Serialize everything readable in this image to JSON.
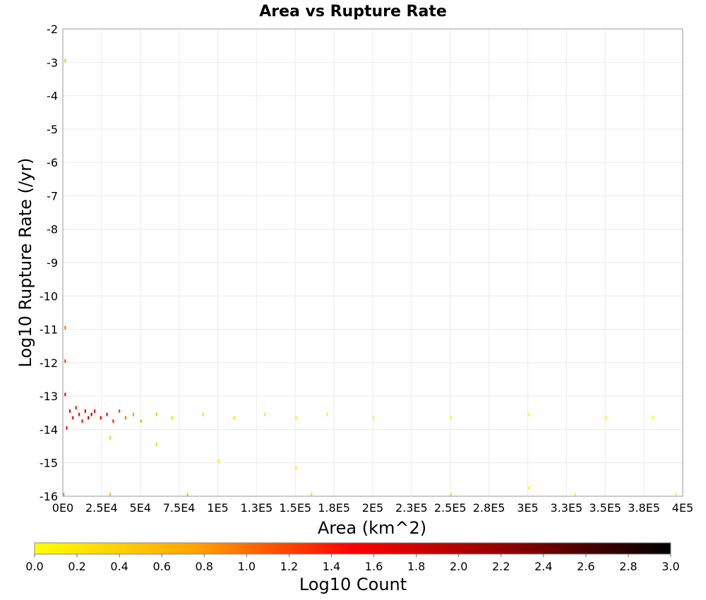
{
  "chart_data": {
    "type": "heatmap",
    "title": "Area vs Rupture Rate",
    "xlabel": "Area (km^2)",
    "ylabel": "Log10 Rupture Rate (/yr)",
    "xlim": [
      0,
      400000
    ],
    "ylim": [
      -16,
      -2
    ],
    "x_tick_labels": [
      "0E0",
      "2.5E4",
      "5E4",
      "7.5E4",
      "1E5",
      "1.3E5",
      "1.5E5",
      "1.8E5",
      "2E5",
      "2.3E5",
      "2.5E5",
      "2.8E5",
      "3E5",
      "3.3E5",
      "3.5E5",
      "3.8E5",
      "4E5"
    ],
    "y_tick_labels": [
      "-2",
      "-3",
      "-4",
      "-5",
      "-6",
      "-7",
      "-8",
      "-9",
      "-10",
      "-11",
      "-12",
      "-13",
      "-14",
      "-15",
      "-16"
    ],
    "grid": true,
    "colorbar": {
      "label": "Log10 Count",
      "range": [
        0.0,
        3.0
      ],
      "tick_labels": [
        "0.0",
        "0.2",
        "0.4",
        "0.6",
        "0.8",
        "1.0",
        "1.2",
        "1.4",
        "1.6",
        "1.8",
        "2.0",
        "2.2",
        "2.4",
        "2.6",
        "2.8",
        "3.0"
      ],
      "colors": [
        "#ffff00",
        "#ffa500",
        "#ff0000",
        "#8b0000",
        "#000000"
      ]
    },
    "cell_size": {
      "dx": 1000,
      "dy": 0.1
    },
    "cells": [
      [
        0,
        -16,
        0.9
      ],
      [
        2000,
        -14,
        1.4
      ],
      [
        4000,
        -13.5,
        1.6
      ],
      [
        6000,
        -13.7,
        1.5
      ],
      [
        8000,
        -13.4,
        1.4
      ],
      [
        10000,
        -13.6,
        1.5
      ],
      [
        12000,
        -13.8,
        1.4
      ],
      [
        14000,
        -13.5,
        1.7
      ],
      [
        16000,
        -13.7,
        1.9
      ],
      [
        18000,
        -13.6,
        1.8
      ],
      [
        20000,
        -13.5,
        1.6
      ],
      [
        24000,
        -13.7,
        1.5
      ],
      [
        28000,
        -13.6,
        1.6
      ],
      [
        32000,
        -13.8,
        1.3
      ],
      [
        36000,
        -13.5,
        1.2
      ],
      [
        40000,
        -13.7,
        1.0
      ],
      [
        45000,
        -13.6,
        0.8
      ],
      [
        50000,
        -13.8,
        0.6
      ],
      [
        60000,
        -13.6,
        0.5
      ],
      [
        70000,
        -13.7,
        0.4
      ],
      [
        90000,
        -13.6,
        0.3
      ],
      [
        110000,
        -13.7,
        0.25
      ],
      [
        130000,
        -13.6,
        0.2
      ],
      [
        150000,
        -13.7,
        0.15
      ],
      [
        170000,
        -13.6,
        0.1
      ],
      [
        200000,
        -13.7,
        0.1
      ],
      [
        250000,
        -13.7,
        0.05
      ],
      [
        300000,
        -13.6,
        0.05
      ],
      [
        350000,
        -13.7,
        0.05
      ],
      [
        380000,
        -13.7,
        0.0
      ],
      [
        30000,
        -16,
        0.6
      ],
      [
        80000,
        -16,
        0.5
      ],
      [
        160000,
        -16,
        0.3
      ],
      [
        250000,
        -16,
        0.2
      ],
      [
        330000,
        -16,
        0.1
      ],
      [
        395000,
        -16,
        0.0
      ],
      [
        1000,
        -3,
        0.5
      ],
      [
        1000,
        -11,
        1.0
      ],
      [
        1000,
        -12,
        1.2
      ],
      [
        1000,
        -13,
        1.5
      ],
      [
        30000,
        -14.3,
        0.4
      ],
      [
        60000,
        -14.5,
        0.3
      ],
      [
        100000,
        -15.0,
        0.2
      ],
      [
        150000,
        -15.2,
        0.1
      ],
      [
        300000,
        -15.8,
        0.0
      ]
    ]
  }
}
